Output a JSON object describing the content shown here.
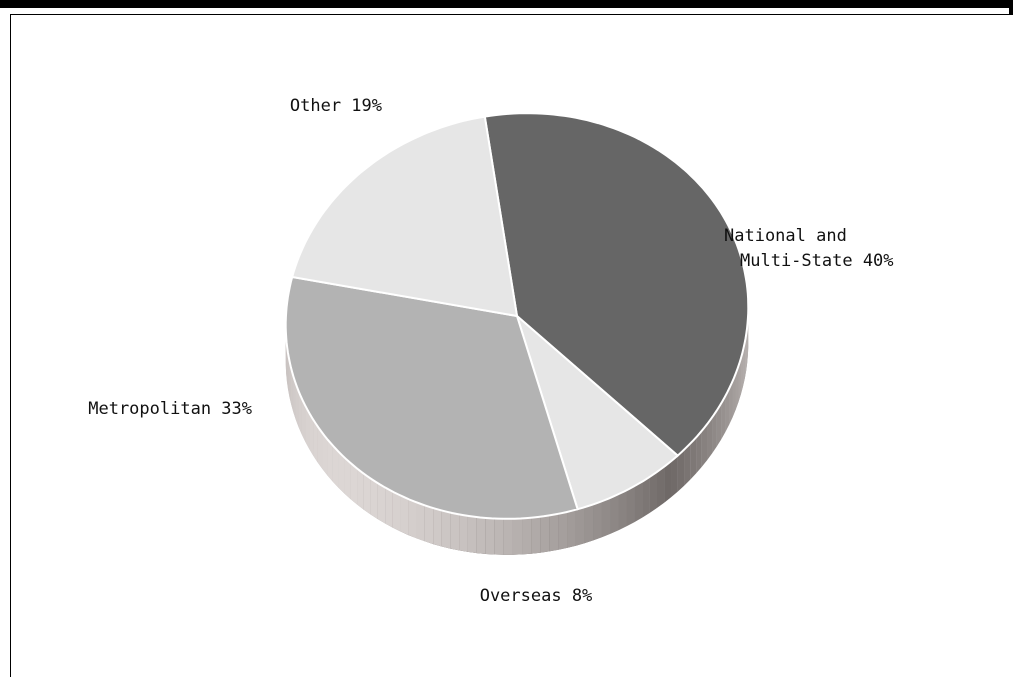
{
  "chart_data": {
    "type": "pie",
    "title": "",
    "slices": [
      {
        "label_lines": [
          "National and",
          "Multi-State 40%"
        ],
        "name": "National and Multi-State",
        "value": 40,
        "color": "#666666"
      },
      {
        "label_lines": [
          "Overseas 8%"
        ],
        "name": "Overseas",
        "value": 8,
        "color": "#e6e6e6"
      },
      {
        "label_lines": [
          "Metropolitan 33%"
        ],
        "name": "Metropolitan",
        "value": 33,
        "color": "#b3b3b3"
      },
      {
        "label_lines": [
          "Other 19%"
        ],
        "name": "Other",
        "value": 19,
        "color": "#e6e6e6"
      }
    ],
    "legend": "none",
    "style": "3d-tilted"
  }
}
